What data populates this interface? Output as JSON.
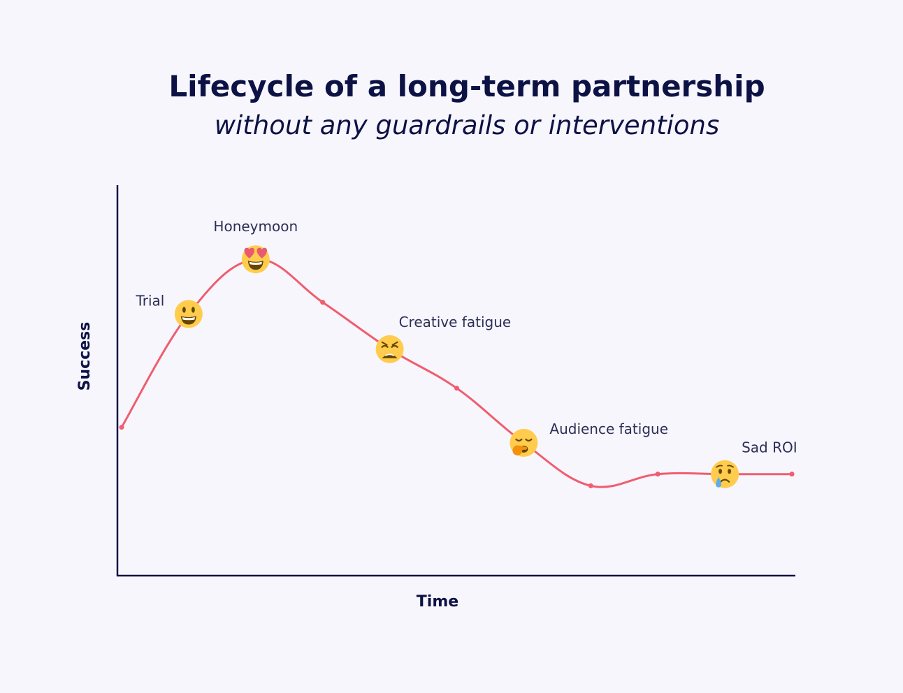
{
  "chart_data": {
    "type": "line",
    "title": "Lifecycle of a long-term partnership",
    "subtitle": "without any guardrails or interventions",
    "xlabel": "Time",
    "ylabel": "Success",
    "grid": false,
    "line_color": "#f05d6f",
    "axis_color": "#0d1245",
    "face_color": "#ffcc4d",
    "x": [
      0,
      1,
      2,
      3,
      4,
      5,
      6,
      7,
      8,
      9,
      10
    ],
    "y": [
      38,
      67,
      81,
      70,
      58,
      48,
      34,
      23,
      26,
      26,
      26
    ],
    "annotations": [
      {
        "label": "Trial",
        "x": 1,
        "y": 67,
        "icon": "grinning-face-icon"
      },
      {
        "label": "Honeymoon",
        "x": 2,
        "y": 81,
        "icon": "heart-eyes-face-icon"
      },
      {
        "label": "Creative fatigue",
        "x": 4,
        "y": 58,
        "icon": "weary-face-icon"
      },
      {
        "label": "Audience fatigue",
        "x": 6,
        "y": 34,
        "icon": "yawning-face-icon"
      },
      {
        "label": "Sad ROI",
        "x": 9,
        "y": 26,
        "icon": "crying-face-icon"
      }
    ]
  }
}
